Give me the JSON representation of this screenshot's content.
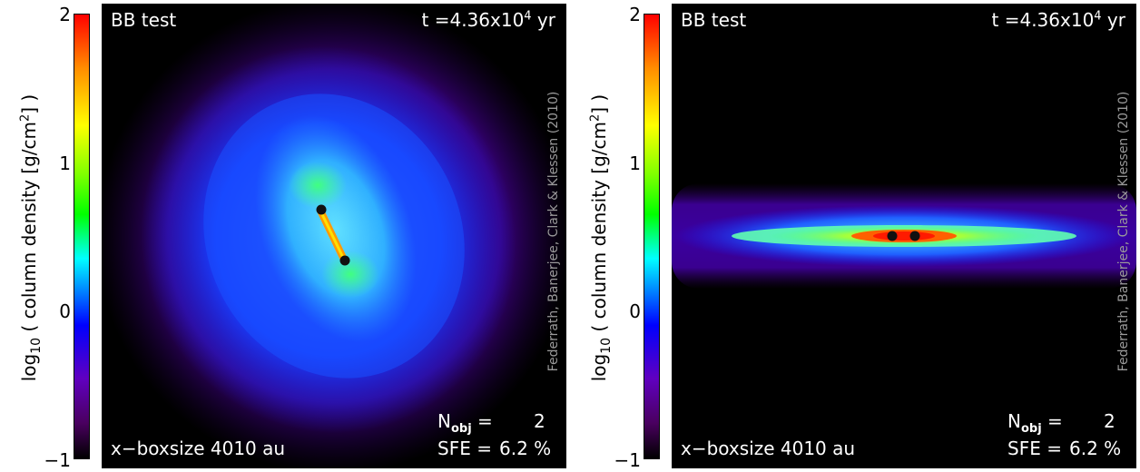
{
  "colorbar": {
    "ticks": [
      "2",
      "1",
      "0",
      "−1"
    ],
    "label_prefix": "log",
    "label_sub": "10",
    "label_main": " ( column density [g/cm",
    "label_sup": "2",
    "label_end": "] )"
  },
  "panels": [
    {
      "title": "BB test",
      "time_prefix": "t =4.36x10",
      "time_exp": "4",
      "time_unit": " yr",
      "boxsize": "x−boxsize   4010 au",
      "nobj_label": "N",
      "nobj_sub": "obj",
      "nobj_eq": " =",
      "nobj_value": "2",
      "sfe_label": "SFE =",
      "sfe_value": "6.2 %",
      "credit": "Federrath, Banerjee, Clark & Klessen (2010)"
    },
    {
      "title": "BB test",
      "time_prefix": "t =4.36x10",
      "time_exp": "4",
      "time_unit": " yr",
      "boxsize": "x−boxsize   4010 au",
      "nobj_label": "N",
      "nobj_sub": "obj",
      "nobj_eq": " =",
      "nobj_value": "2",
      "sfe_label": "SFE =",
      "sfe_value": "6.2 %",
      "credit": "Federrath, Banerjee, Clark & Klessen (2010)"
    }
  ]
}
